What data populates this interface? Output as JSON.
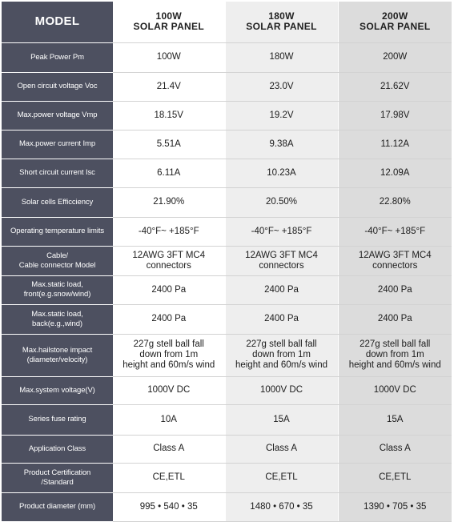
{
  "header": {
    "model_label": "MODEL",
    "columns": [
      [
        "100W",
        "SOLAR PANEL"
      ],
      [
        "180W",
        "SOLAR PANEL"
      ],
      [
        "200W",
        "SOLAR PANEL"
      ]
    ]
  },
  "rows": [
    {
      "label": [
        "Peak Power Pm"
      ],
      "values": [
        [
          "100W"
        ],
        [
          "180W"
        ],
        [
          "200W"
        ]
      ]
    },
    {
      "label": [
        "Open circuit voltage Voc"
      ],
      "values": [
        [
          "21.4V"
        ],
        [
          "23.0V"
        ],
        [
          "21.62V"
        ]
      ]
    },
    {
      "label": [
        "Max.power voltage Vmp"
      ],
      "values": [
        [
          "18.15V"
        ],
        [
          "19.2V"
        ],
        [
          "17.98V"
        ]
      ]
    },
    {
      "label": [
        "Max.power current Imp"
      ],
      "values": [
        [
          "5.51A"
        ],
        [
          "9.38A"
        ],
        [
          "11.12A"
        ]
      ]
    },
    {
      "label": [
        "Short circuit current Isc"
      ],
      "values": [
        [
          "6.11A"
        ],
        [
          "10.23A"
        ],
        [
          "12.09A"
        ]
      ]
    },
    {
      "label": [
        "Solar cells Efficciency"
      ],
      "values": [
        [
          "21.90%"
        ],
        [
          "20.50%"
        ],
        [
          "22.80%"
        ]
      ]
    },
    {
      "label": [
        "Operating temperature limits"
      ],
      "values": [
        [
          "-40°F~ +185°F"
        ],
        [
          "-40°F~ +185°F"
        ],
        [
          "-40°F~ +185°F"
        ]
      ]
    },
    {
      "label": [
        "Cable/",
        "Cable connector Model"
      ],
      "values": [
        [
          "12AWG 3FT MC4",
          "connectors"
        ],
        [
          "12AWG 3FT MC4",
          "connectors"
        ],
        [
          "12AWG 3FT MC4",
          "connectors"
        ]
      ]
    },
    {
      "label": [
        "Max.static load,",
        "front(e.g.snow/wind)"
      ],
      "values": [
        [
          "2400 Pa"
        ],
        [
          "2400 Pa"
        ],
        [
          "2400 Pa"
        ]
      ]
    },
    {
      "label": [
        "Max.static load,",
        "back(e.g.,wind)"
      ],
      "values": [
        [
          "2400 Pa"
        ],
        [
          "2400 Pa"
        ],
        [
          "2400 Pa"
        ]
      ]
    },
    {
      "label": [
        "Max.hailstone impact",
        "(diameter/velocity)"
      ],
      "values": [
        [
          "227g stell ball fall",
          "down from 1m",
          "height and 60m/s wind"
        ],
        [
          "227g stell ball fall",
          "down from 1m",
          "height and 60m/s wind"
        ],
        [
          "227g stell ball fall",
          "down from 1m",
          "height and 60m/s wind"
        ]
      ]
    },
    {
      "label": [
        "Max.system voltage(V)"
      ],
      "values": [
        [
          "1000V DC"
        ],
        [
          "1000V DC"
        ],
        [
          "1000V DC"
        ]
      ]
    },
    {
      "label": [
        "Series fuse rating"
      ],
      "values": [
        [
          "10A"
        ],
        [
          "15A"
        ],
        [
          "15A"
        ]
      ]
    },
    {
      "label": [
        "Application Class"
      ],
      "values": [
        [
          "Class A"
        ],
        [
          "Class A"
        ],
        [
          "Class A"
        ]
      ]
    },
    {
      "label": [
        "Product Certification",
        "/Standard"
      ],
      "values": [
        [
          "CE,ETL"
        ],
        [
          "CE,ETL"
        ],
        [
          "CE,ETL"
        ]
      ]
    },
    {
      "label": [
        "Product diameter (mm)"
      ],
      "values": [
        [
          "995 • 540 • 35"
        ],
        [
          "1480 • 670 • 35"
        ],
        [
          "1390 • 705 • 35"
        ]
      ]
    }
  ],
  "colors": {
    "label_bg": "#4d5060",
    "col1_bg": "#ffffff",
    "col2_bg": "#eeeeee",
    "col3_bg": "#dcdcdc"
  }
}
